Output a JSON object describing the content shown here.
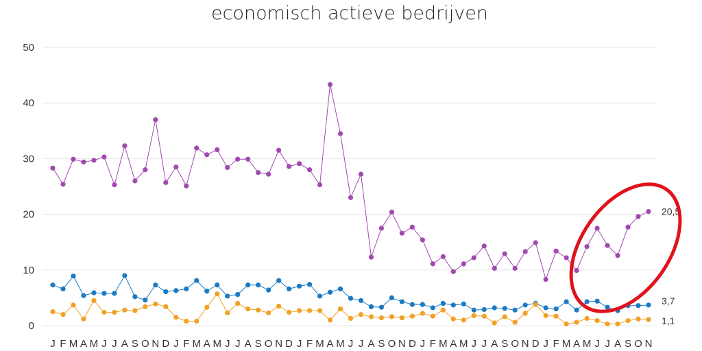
{
  "chart_data": {
    "type": "line",
    "title": "economisch actieve bedrijven",
    "ylim": [
      0,
      50
    ],
    "yticks": [
      0,
      10,
      20,
      30,
      40,
      50
    ],
    "grid": true,
    "x": [
      "J",
      "F",
      "M",
      "A",
      "M",
      "J",
      "J",
      "A",
      "S",
      "O",
      "N",
      "D",
      "J",
      "F",
      "M",
      "A",
      "M",
      "J",
      "J",
      "A",
      "S",
      "O",
      "N",
      "D",
      "J",
      "F",
      "M",
      "A",
      "M",
      "J",
      "J",
      "A",
      "S",
      "O",
      "N",
      "D",
      "J",
      "F",
      "M",
      "A",
      "M",
      "J",
      "J",
      "A",
      "S",
      "O",
      "N",
      "D",
      "J",
      "F",
      "M",
      "A",
      "M",
      "J",
      "J",
      "A",
      "S",
      "O",
      "N"
    ],
    "series": [
      {
        "color": "#a04ab0",
        "end_label": "20,5",
        "values": [
          28.3,
          25.4,
          29.9,
          29.4,
          29.7,
          30.3,
          25.3,
          32.3,
          26.0,
          28.0,
          37.0,
          25.7,
          28.5,
          25.1,
          31.9,
          30.7,
          31.6,
          28.4,
          29.9,
          29.9,
          27.5,
          27.2,
          31.5,
          28.6,
          29.1,
          28.0,
          25.3,
          43.3,
          34.5,
          23.0,
          27.2,
          12.3,
          17.5,
          20.4,
          16.6,
          17.7,
          15.4,
          11.1,
          12.4,
          9.7,
          11.1,
          12.2,
          14.3,
          10.3,
          12.9,
          10.3,
          13.3,
          14.9,
          8.3,
          13.4,
          12.2,
          9.9,
          14.2,
          17.5,
          14.4,
          12.6,
          17.7,
          19.6,
          20.5
        ]
      },
      {
        "color": "#1a7bc4",
        "end_label": "3,7",
        "values": [
          7.3,
          6.6,
          8.9,
          5.4,
          5.9,
          5.8,
          5.8,
          9.0,
          5.2,
          4.6,
          7.3,
          6.1,
          6.3,
          6.6,
          8.1,
          6.2,
          7.3,
          5.3,
          5.6,
          7.3,
          7.3,
          6.4,
          8.1,
          6.6,
          7.1,
          7.4,
          5.3,
          6.0,
          6.6,
          4.9,
          4.5,
          3.4,
          3.3,
          5.0,
          4.3,
          3.8,
          3.8,
          3.2,
          4.0,
          3.7,
          3.9,
          2.8,
          2.9,
          3.2,
          3.1,
          2.8,
          3.7,
          4.0,
          3.2,
          3.0,
          4.3,
          2.8,
          4.3,
          4.4,
          3.3,
          2.7,
          3.6,
          3.6,
          3.7
        ]
      },
      {
        "color": "#f2a127",
        "end_label": "1,1",
        "values": [
          2.5,
          2.0,
          3.7,
          1.2,
          4.5,
          2.4,
          2.4,
          2.8,
          2.7,
          3.4,
          3.9,
          3.4,
          1.5,
          0.8,
          0.8,
          3.3,
          5.7,
          2.3,
          4.0,
          3.0,
          2.8,
          2.3,
          3.5,
          2.4,
          2.7,
          2.7,
          2.7,
          1.0,
          3.0,
          1.3,
          2.0,
          1.6,
          1.4,
          1.6,
          1.4,
          1.7,
          2.2,
          1.7,
          2.8,
          1.2,
          1.0,
          1.8,
          1.7,
          0.5,
          1.6,
          0.6,
          2.2,
          3.8,
          1.8,
          1.7,
          0.3,
          0.6,
          1.3,
          0.9,
          0.3,
          0.3,
          0.9,
          1.2,
          1.1
        ]
      }
    ],
    "highlight": {
      "shape": "ellipse",
      "color": "#e0121b",
      "around": "last five months"
    }
  }
}
